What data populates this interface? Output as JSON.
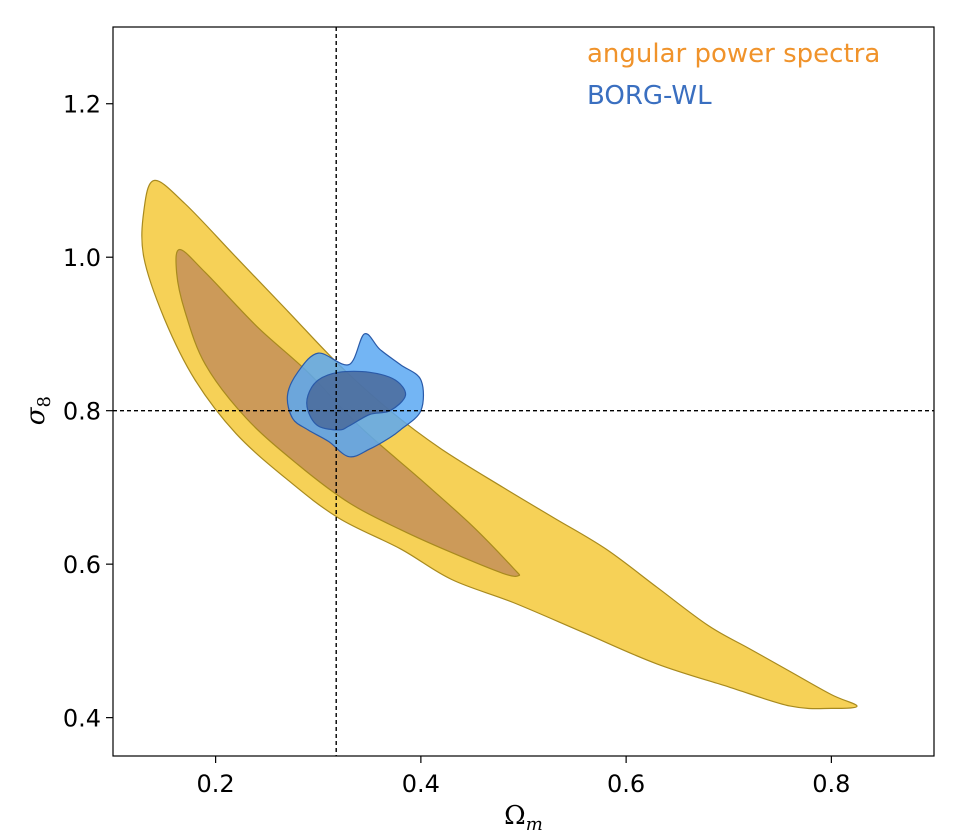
{
  "chart_data": {
    "type": "contour",
    "xlabel": "Ω_m",
    "ylabel": "σ_8",
    "xlim": [
      0.1,
      0.9
    ],
    "ylim": [
      0.35,
      1.3
    ],
    "x_ticks": [
      "0.2",
      "0.4",
      "0.6",
      "0.8"
    ],
    "y_ticks": [
      "0.4",
      "0.6",
      "0.8",
      "1.0",
      "1.2"
    ],
    "x_tick_values": [
      0.2,
      0.4,
      0.6,
      0.8
    ],
    "y_tick_values": [
      0.4,
      0.6,
      0.8,
      1.0,
      1.2
    ],
    "reference_lines": {
      "x": 0.3175,
      "y": 0.8
    },
    "legend_position": "top-right",
    "series": [
      {
        "name": "angular power spectra",
        "color": "#f0932b",
        "fill_outer": "#f5c93a",
        "fill_inner": "#c8935a",
        "edge": "#a88a1e",
        "contour_95": [
          [
            0.14,
            1.1
          ],
          [
            0.17,
            1.07
          ],
          [
            0.22,
            1.0
          ],
          [
            0.27,
            0.93
          ],
          [
            0.32,
            0.86
          ],
          [
            0.37,
            0.8
          ],
          [
            0.42,
            0.75
          ],
          [
            0.48,
            0.7
          ],
          [
            0.53,
            0.66
          ],
          [
            0.58,
            0.62
          ],
          [
            0.63,
            0.57
          ],
          [
            0.68,
            0.52
          ],
          [
            0.72,
            0.49
          ],
          [
            0.76,
            0.46
          ],
          [
            0.8,
            0.43
          ],
          [
            0.825,
            0.415
          ],
          [
            0.8,
            0.412
          ],
          [
            0.76,
            0.415
          ],
          [
            0.7,
            0.44
          ],
          [
            0.63,
            0.47
          ],
          [
            0.56,
            0.51
          ],
          [
            0.49,
            0.55
          ],
          [
            0.43,
            0.58
          ],
          [
            0.38,
            0.62
          ],
          [
            0.32,
            0.66
          ],
          [
            0.27,
            0.71
          ],
          [
            0.22,
            0.77
          ],
          [
            0.18,
            0.84
          ],
          [
            0.15,
            0.92
          ],
          [
            0.13,
            1.0
          ],
          [
            0.13,
            1.06
          ]
        ],
        "contour_68": [
          [
            0.165,
            1.01
          ],
          [
            0.19,
            0.98
          ],
          [
            0.24,
            0.91
          ],
          [
            0.29,
            0.85
          ],
          [
            0.34,
            0.78
          ],
          [
            0.4,
            0.71
          ],
          [
            0.45,
            0.65
          ],
          [
            0.49,
            0.595
          ],
          [
            0.495,
            0.585
          ],
          [
            0.48,
            0.588
          ],
          [
            0.43,
            0.615
          ],
          [
            0.38,
            0.645
          ],
          [
            0.33,
            0.68
          ],
          [
            0.28,
            0.73
          ],
          [
            0.23,
            0.79
          ],
          [
            0.19,
            0.86
          ],
          [
            0.17,
            0.93
          ],
          [
            0.162,
            0.98
          ]
        ]
      },
      {
        "name": "BORG-WL",
        "color": "#3a6fc0",
        "fill_outer": "#5aa8f2",
        "fill_inner": "#4a6a9a",
        "edge": "#2a5aa8",
        "contour_95": [
          [
            0.27,
            0.82
          ],
          [
            0.28,
            0.85
          ],
          [
            0.3,
            0.875
          ],
          [
            0.33,
            0.86
          ],
          [
            0.345,
            0.9
          ],
          [
            0.36,
            0.88
          ],
          [
            0.38,
            0.86
          ],
          [
            0.4,
            0.84
          ],
          [
            0.4,
            0.8
          ],
          [
            0.38,
            0.775
          ],
          [
            0.37,
            0.765
          ],
          [
            0.35,
            0.75
          ],
          [
            0.33,
            0.74
          ],
          [
            0.31,
            0.76
          ],
          [
            0.29,
            0.775
          ],
          [
            0.275,
            0.79
          ]
        ],
        "contour_68": [
          [
            0.29,
            0.82
          ],
          [
            0.3,
            0.84
          ],
          [
            0.32,
            0.85
          ],
          [
            0.35,
            0.85
          ],
          [
            0.375,
            0.84
          ],
          [
            0.385,
            0.82
          ],
          [
            0.37,
            0.8
          ],
          [
            0.35,
            0.795
          ],
          [
            0.33,
            0.78
          ],
          [
            0.32,
            0.775
          ],
          [
            0.3,
            0.78
          ],
          [
            0.29,
            0.8
          ]
        ]
      }
    ]
  }
}
